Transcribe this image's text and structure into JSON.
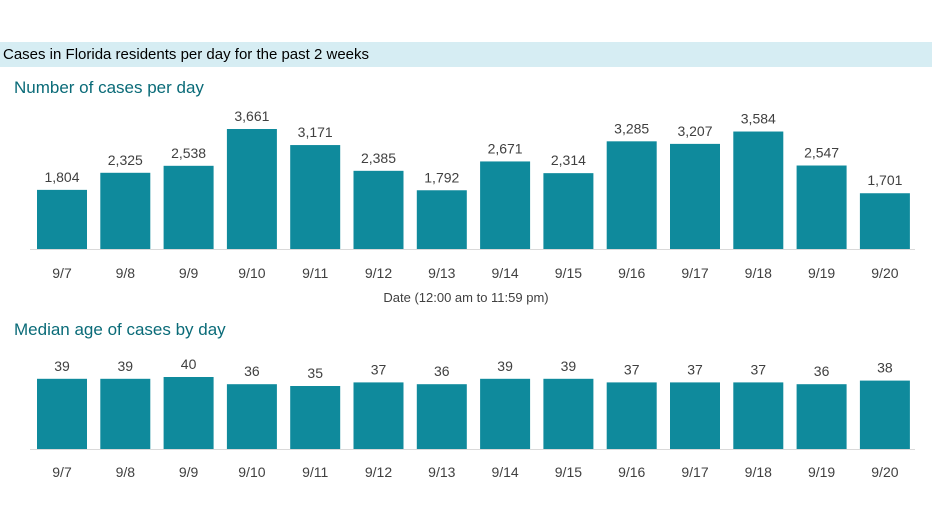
{
  "header": {
    "title": "Cases in Florida residents per day for the past 2 weeks"
  },
  "colors": {
    "bar": "#0f8a9c",
    "banner": "#d6edf3",
    "section_title": "#0a6b78"
  },
  "chart_data": [
    {
      "type": "bar",
      "title": "Number of cases per day",
      "xlabel": "Date (12:00 am to 11:59 pm)",
      "ylabel": "",
      "ylim": [
        0,
        3661
      ],
      "categories": [
        "9/7",
        "9/8",
        "9/9",
        "9/10",
        "9/11",
        "9/12",
        "9/13",
        "9/14",
        "9/15",
        "9/16",
        "9/17",
        "9/18",
        "9/19",
        "9/20"
      ],
      "values": [
        1804,
        2325,
        2538,
        3661,
        3171,
        2385,
        1792,
        2671,
        2314,
        3285,
        3207,
        3584,
        2547,
        1701
      ],
      "value_labels": [
        "1,804",
        "2,325",
        "2,538",
        "3,661",
        "3,171",
        "2,385",
        "1,792",
        "2,671",
        "2,314",
        "3,285",
        "3,207",
        "3,584",
        "2,547",
        "1,701"
      ]
    },
    {
      "type": "bar",
      "title": "Median age of cases by day",
      "xlabel": "",
      "ylabel": "",
      "ylim": [
        0,
        40
      ],
      "categories": [
        "9/7",
        "9/8",
        "9/9",
        "9/10",
        "9/11",
        "9/12",
        "9/13",
        "9/14",
        "9/15",
        "9/16",
        "9/17",
        "9/18",
        "9/19",
        "9/20"
      ],
      "values": [
        39,
        39,
        40,
        36,
        35,
        37,
        36,
        39,
        39,
        37,
        37,
        37,
        36,
        38
      ],
      "value_labels": [
        "39",
        "39",
        "40",
        "36",
        "35",
        "37",
        "36",
        "39",
        "39",
        "37",
        "37",
        "37",
        "36",
        "38"
      ]
    }
  ]
}
